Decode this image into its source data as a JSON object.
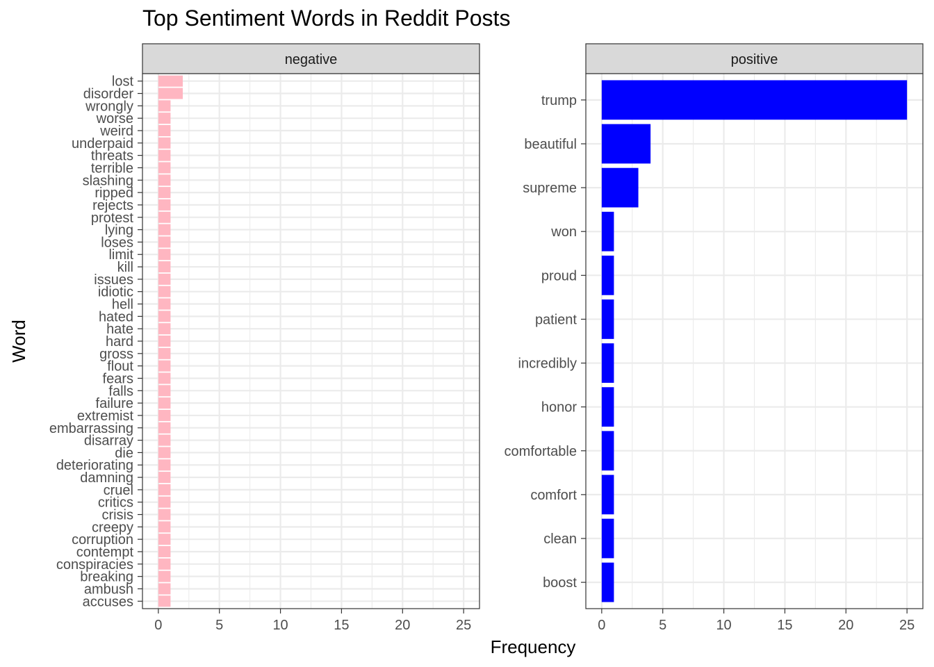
{
  "chart_data": {
    "type": "bar",
    "title": "Top Sentiment Words in Reddit Posts",
    "xlabel": "Frequency",
    "ylabel": "Word",
    "orientation": "horizontal",
    "xlim": [
      0,
      26
    ],
    "xticks": [
      0,
      5,
      10,
      15,
      20,
      25
    ],
    "grid": true,
    "facets": [
      {
        "name": "negative",
        "color": "#ffb6c1",
        "categories": [
          "lost",
          "disorder",
          "wrongly",
          "worse",
          "weird",
          "underpaid",
          "threats",
          "terrible",
          "slashing",
          "ripped",
          "rejects",
          "protest",
          "lying",
          "loses",
          "limit",
          "kill",
          "issues",
          "idiotic",
          "hell",
          "hated",
          "hate",
          "hard",
          "gross",
          "flout",
          "fears",
          "falls",
          "failure",
          "extremist",
          "embarrassing",
          "disarray",
          "die",
          "deteriorating",
          "damning",
          "cruel",
          "critics",
          "crisis",
          "creepy",
          "corruption",
          "contempt",
          "conspiracies",
          "breaking",
          "ambush",
          "accuses"
        ],
        "values": [
          2,
          2,
          1,
          1,
          1,
          1,
          1,
          1,
          1,
          1,
          1,
          1,
          1,
          1,
          1,
          1,
          1,
          1,
          1,
          1,
          1,
          1,
          1,
          1,
          1,
          1,
          1,
          1,
          1,
          1,
          1,
          1,
          1,
          1,
          1,
          1,
          1,
          1,
          1,
          1,
          1,
          1,
          1
        ]
      },
      {
        "name": "positive",
        "color": "#0000ff",
        "categories": [
          "trump",
          "beautiful",
          "supreme",
          "won",
          "proud",
          "patient",
          "incredibly",
          "honor",
          "comfortable",
          "comfort",
          "clean",
          "boost"
        ],
        "values": [
          25,
          4,
          3,
          1,
          1,
          1,
          1,
          1,
          1,
          1,
          1,
          1
        ]
      }
    ]
  }
}
